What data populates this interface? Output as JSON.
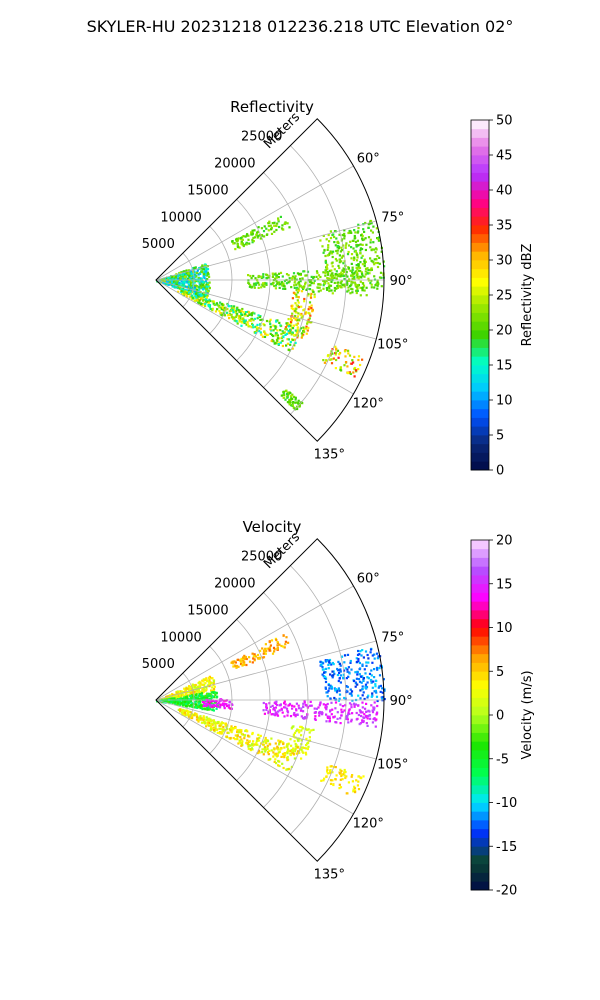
{
  "figure": {
    "suptitle": "SKYLER-HU  20231218  012236.218 UTC Elevation 02°"
  },
  "chart_data": [
    {
      "type": "heatmap",
      "projection": "polar-sector",
      "title": "Reflectivity",
      "radial_axis_label": "Meters",
      "radial_ticks": [
        "5000",
        "10000",
        "15000",
        "20000",
        "25000"
      ],
      "radial_tick_values": [
        5000,
        10000,
        15000,
        20000,
        25000
      ],
      "rmax": 30000,
      "azimuth_range_deg": [
        45,
        135
      ],
      "angular_ticks": [
        "60°",
        "75°",
        "90°",
        "105°",
        "120°",
        "135°"
      ],
      "angular_tick_values": [
        60,
        75,
        90,
        105,
        120,
        135
      ],
      "grid": true,
      "colorbar": {
        "label": "Reflectivity dBZ",
        "range": [
          0,
          50
        ],
        "ticks": [
          "0",
          "5",
          "10",
          "15",
          "20",
          "25",
          "30",
          "35",
          "40",
          "45",
          "50"
        ],
        "tick_values": [
          0,
          5,
          10,
          15,
          20,
          25,
          30,
          35,
          40,
          45,
          50
        ]
      },
      "echo_regions": [
        {
          "az": [
            70,
            110
          ],
          "r": [
            0,
            7000
          ],
          "value_range": [
            10,
            24
          ]
        },
        {
          "az": [
            62,
            68
          ],
          "r": [
            11000,
            19000
          ],
          "value_range": [
            18,
            24
          ]
        },
        {
          "az": [
            74,
            92
          ],
          "r": [
            22000,
            30000
          ],
          "value_range": [
            18,
            24
          ]
        },
        {
          "az": [
            86,
            94
          ],
          "r": [
            12000,
            28000
          ],
          "value_range": [
            18,
            24
          ]
        },
        {
          "az": [
            93,
            112
          ],
          "r": [
            18000,
            21000
          ],
          "value_range": [
            20,
            34
          ]
        },
        {
          "az": [
            108,
            118
          ],
          "r": [
            3000,
            20000
          ],
          "value_range": [
            14,
            30
          ]
        },
        {
          "az": [
            110,
            116
          ],
          "r": [
            24000,
            29000
          ],
          "value_range": [
            20,
            36
          ]
        },
        {
          "az": [
            130,
            133
          ],
          "r": [
            22000,
            25000
          ],
          "value_range": [
            18,
            24
          ]
        }
      ]
    },
    {
      "type": "heatmap",
      "projection": "polar-sector",
      "title": "Velocity",
      "radial_axis_label": "Meters",
      "radial_ticks": [
        "5000",
        "10000",
        "15000",
        "20000",
        "25000"
      ],
      "radial_tick_values": [
        5000,
        10000,
        15000,
        20000,
        25000
      ],
      "rmax": 30000,
      "azimuth_range_deg": [
        45,
        135
      ],
      "angular_ticks": [
        "60°",
        "75°",
        "90°",
        "105°",
        "120°",
        "135°"
      ],
      "angular_tick_values": [
        60,
        75,
        90,
        105,
        120,
        135
      ],
      "grid": true,
      "colorbar": {
        "label": "Velocity (m/s)",
        "range": [
          -20,
          20
        ],
        "ticks": [
          "-20",
          "-15",
          "-10",
          "-5",
          "0",
          "5",
          "10",
          "15",
          "20"
        ],
        "tick_values": [
          -20,
          -15,
          -10,
          -5,
          0,
          5,
          10,
          15,
          20
        ]
      },
      "echo_regions": [
        {
          "az": [
            65,
            80
          ],
          "r": [
            0,
            8000
          ],
          "value_range": [
            0,
            6
          ]
        },
        {
          "az": [
            80,
            100
          ],
          "r": [
            0,
            8000
          ],
          "value_range": [
            -8,
            -2
          ]
        },
        {
          "az": [
            88,
            96
          ],
          "r": [
            6000,
            10000
          ],
          "value_range": [
            12,
            16
          ]
        },
        {
          "az": [
            62,
            68
          ],
          "r": [
            11000,
            19000
          ],
          "value_range": [
            4,
            8
          ]
        },
        {
          "az": [
            76,
            90
          ],
          "r": [
            22000,
            30000
          ],
          "value_range": [
            -14,
            -10
          ]
        },
        {
          "az": [
            90,
            97
          ],
          "r": [
            14000,
            29000
          ],
          "value_range": [
            13,
            17
          ]
        },
        {
          "az": [
            100,
            112
          ],
          "r": [
            18000,
            21000
          ],
          "value_range": [
            0,
            4
          ]
        },
        {
          "az": [
            108,
            118
          ],
          "r": [
            3000,
            20000
          ],
          "value_range": [
            0,
            6
          ]
        },
        {
          "az": [
            110,
            116
          ],
          "r": [
            24000,
            29000
          ],
          "value_range": [
            2,
            6
          ]
        }
      ]
    }
  ],
  "colors": {
    "reflectivity_stops": [
      "#000a46",
      "#0a2878",
      "#0050ff",
      "#00c8ff",
      "#00ffc8",
      "#3cd200",
      "#96e600",
      "#ffff00",
      "#ffb400",
      "#ff2800",
      "#ff0090",
      "#b432ff",
      "#e678e6",
      "#ffffff"
    ],
    "velocity_stops": [
      "#000a46",
      "#0a4632",
      "#0032ff",
      "#00e6ff",
      "#00ff50",
      "#1ee600",
      "#b4ff1e",
      "#ffff00",
      "#ffa000",
      "#ff0000",
      "#ff00ff",
      "#b450ff",
      "#ffdcff"
    ]
  }
}
